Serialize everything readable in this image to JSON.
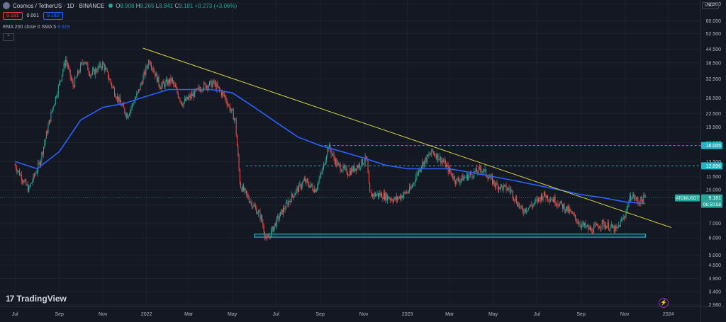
{
  "header": {
    "title": "Cosmos / TetherUS · 1D · BINANCE",
    "open_label": "O",
    "open": "8.908",
    "high_label": "H",
    "high": "9.265",
    "low_label": "L",
    "low": "8.841",
    "close_label": "C",
    "close": "9.181",
    "change": "+0.273 (+3.06%)"
  },
  "trade": {
    "sell": "9.181",
    "spread": "0.001",
    "buy": "9.182"
  },
  "indicator": {
    "label": "EMA 200 close 0 SMA 5",
    "value": "8.619"
  },
  "currency": "USDT",
  "watermark": "TradingView",
  "icons": {
    "logo": "atom-coin-icon",
    "status": "market-open-dot-icon",
    "collapse": "chevron-up-icon",
    "alert": "lightning-icon"
  },
  "colors": {
    "bg": "#141823",
    "up": "#26a69a",
    "down": "#ef5350",
    "ema": "#2962ff",
    "trendline": "#d6d23f",
    "support": "#26c6da",
    "level": "#22b6c8",
    "price_tag": "#26a69a"
  },
  "chart_data": {
    "type": "candlestick",
    "x_tick_labels": [
      "Jul",
      "Sep",
      "Nov",
      "2022",
      "Mar",
      "May",
      "Jul",
      "Sep",
      "Nov",
      "2023",
      "Mar",
      "May",
      "Jul",
      "Sep",
      "Nov",
      "2024"
    ],
    "y_tick_labels": [
      "72.000",
      "60.000",
      "52.500",
      "44.500",
      "38.500",
      "32.500",
      "26.500",
      "22.500",
      "19.500",
      "16.500",
      "13.500",
      "11.500",
      "10.000",
      "8.500",
      "7.000",
      "6.000",
      "5.000",
      "4.500",
      "3.900",
      "3.400",
      "2.960"
    ],
    "y_scale": "log",
    "ylim": [
      2.9,
      75
    ],
    "series": [
      {
        "name": "ATOMUSDT",
        "kind": "close",
        "points": [
          [
            "2021-07-01",
            13.0
          ],
          [
            "2021-07-20",
            10.0
          ],
          [
            "2021-08-05",
            13.5
          ],
          [
            "2021-08-20",
            22.0
          ],
          [
            "2021-09-10",
            40.0
          ],
          [
            "2021-09-20",
            30.0
          ],
          [
            "2021-10-05",
            40.0
          ],
          [
            "2021-10-15",
            34.0
          ],
          [
            "2021-11-01",
            38.0
          ],
          [
            "2021-11-20",
            27.0
          ],
          [
            "2021-12-05",
            22.0
          ],
          [
            "2021-12-20",
            28.0
          ],
          [
            "2022-01-05",
            40.0
          ],
          [
            "2022-01-20",
            30.0
          ],
          [
            "2022-02-05",
            32.0
          ],
          [
            "2022-02-20",
            25.0
          ],
          [
            "2022-03-10",
            28.0
          ],
          [
            "2022-03-20",
            30.0
          ],
          [
            "2022-04-05",
            31.0
          ],
          [
            "2022-04-20",
            27.0
          ],
          [
            "2022-05-05",
            21.0
          ],
          [
            "2022-05-12",
            10.5
          ],
          [
            "2022-05-25",
            9.0
          ],
          [
            "2022-06-10",
            7.5
          ],
          [
            "2022-06-18",
            5.8
          ],
          [
            "2022-07-05",
            7.5
          ],
          [
            "2022-07-25",
            9.5
          ],
          [
            "2022-08-10",
            11.0
          ],
          [
            "2022-08-25",
            10.0
          ],
          [
            "2022-09-05",
            12.5
          ],
          [
            "2022-09-12",
            16.0
          ],
          [
            "2022-09-25",
            13.0
          ],
          [
            "2022-10-10",
            12.0
          ],
          [
            "2022-10-25",
            13.0
          ],
          [
            "2022-11-05",
            14.0
          ],
          [
            "2022-11-09",
            9.5
          ],
          [
            "2022-11-25",
            9.5
          ],
          [
            "2022-12-15",
            9.0
          ],
          [
            "2023-01-05",
            10.0
          ],
          [
            "2023-01-20",
            13.0
          ],
          [
            "2023-02-05",
            15.0
          ],
          [
            "2023-02-20",
            13.5
          ],
          [
            "2023-03-10",
            11.0
          ],
          [
            "2023-03-25",
            11.5
          ],
          [
            "2023-04-15",
            12.5
          ],
          [
            "2023-05-05",
            10.5
          ],
          [
            "2023-05-25",
            10.0
          ],
          [
            "2023-06-10",
            8.0
          ],
          [
            "2023-06-25",
            8.5
          ],
          [
            "2023-07-10",
            9.5
          ],
          [
            "2023-07-25",
            9.0
          ],
          [
            "2023-08-15",
            8.0
          ],
          [
            "2023-08-30",
            7.0
          ],
          [
            "2023-09-15",
            6.5
          ],
          [
            "2023-09-30",
            7.0
          ],
          [
            "2023-10-10",
            6.8
          ],
          [
            "2023-10-20",
            6.5
          ],
          [
            "2023-10-31",
            7.5
          ],
          [
            "2023-11-10",
            9.5
          ],
          [
            "2023-11-20",
            8.8
          ],
          [
            "2023-11-30",
            9.181
          ]
        ]
      },
      {
        "name": "EMA 200",
        "kind": "line",
        "points": [
          [
            "2021-07-01",
            13.5
          ],
          [
            "2021-08-01",
            12.5
          ],
          [
            "2021-09-01",
            15.0
          ],
          [
            "2021-10-01",
            21.0
          ],
          [
            "2021-11-01",
            24.0
          ],
          [
            "2021-12-01",
            25.0
          ],
          [
            "2022-01-01",
            27.0
          ],
          [
            "2022-02-01",
            29.0
          ],
          [
            "2022-03-01",
            29.0
          ],
          [
            "2022-04-01",
            29.0
          ],
          [
            "2022-05-01",
            28.0
          ],
          [
            "2022-06-01",
            24.0
          ],
          [
            "2022-07-01",
            20.5
          ],
          [
            "2022-08-01",
            17.5
          ],
          [
            "2022-09-01",
            16.0
          ],
          [
            "2022-10-01",
            15.0
          ],
          [
            "2022-11-01",
            14.0
          ],
          [
            "2022-12-01",
            13.0
          ],
          [
            "2023-01-01",
            12.5
          ],
          [
            "2023-02-01",
            12.5
          ],
          [
            "2023-03-01",
            12.5
          ],
          [
            "2023-04-01",
            12.0
          ],
          [
            "2023-05-01",
            11.5
          ],
          [
            "2023-06-01",
            11.0
          ],
          [
            "2023-07-01",
            10.5
          ],
          [
            "2023-08-01",
            10.0
          ],
          [
            "2023-09-01",
            9.5
          ],
          [
            "2023-10-01",
            9.2
          ],
          [
            "2023-11-01",
            8.8
          ],
          [
            "2023-11-30",
            8.619
          ]
        ]
      }
    ],
    "trendline": [
      [
        "2021-12-27",
        45.0
      ],
      [
        "2024-01-05",
        6.7
      ]
    ],
    "horizontal_levels": [
      {
        "label": "16.005",
        "value": 16.005,
        "from": "2022-09-01"
      },
      {
        "label": "12.896",
        "value": 12.896,
        "from": "2022-05-20"
      }
    ],
    "support_zone": {
      "from": "2022-06-01",
      "to": "2023-11-30",
      "low": 6.05,
      "high": 6.25
    },
    "last_price": {
      "symbol": "ATOMUSDT",
      "value": "9.181",
      "countdown": "06:50:58"
    },
    "grid": true,
    "legend": "top-left"
  }
}
